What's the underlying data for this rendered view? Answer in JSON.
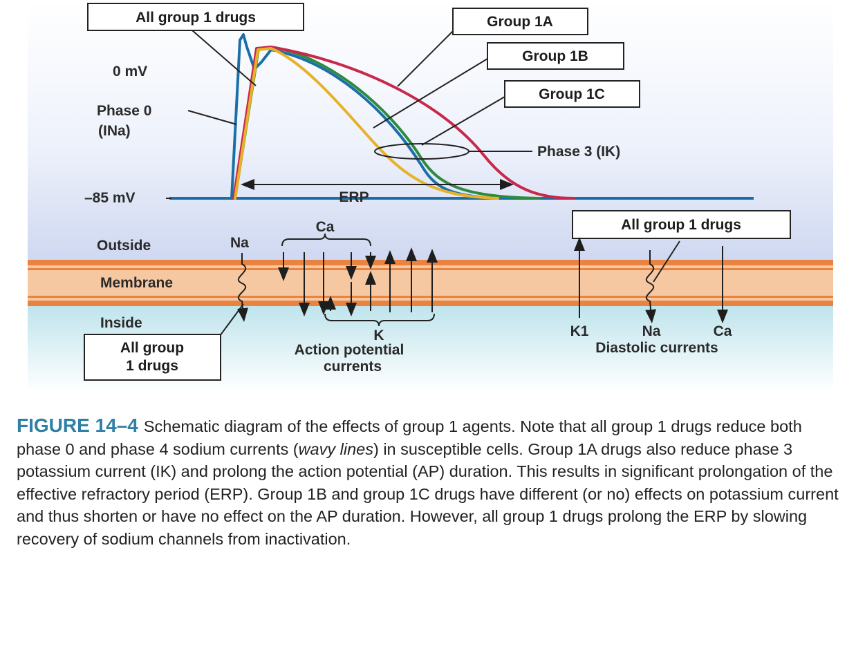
{
  "diagram": {
    "voltage_labels": {
      "zero": "0 mV",
      "rest": "–85 mV"
    },
    "phase0_label": "Phase 0",
    "phase0_current": "(INa)",
    "phase3_label": "Phase 3 (IK)",
    "erp_label": "ERP",
    "callouts": {
      "all_group1_top": "All group 1 drugs",
      "group_1a": "Group 1A",
      "group_1b": "Group 1B",
      "group_1c": "Group 1C",
      "all_group1_bottom_line1": "All group",
      "all_group1_bottom_line2": "1 drugs",
      "all_group1_right": "All group 1 drugs"
    },
    "membrane": {
      "outside": "Outside",
      "membrane": "Membrane",
      "inside": "Inside"
    },
    "ion_labels": {
      "na_left": "Na",
      "ca_top": "Ca",
      "k_bottom": "K",
      "k1": "K1",
      "na_right": "Na",
      "ca_right": "Ca"
    },
    "current_groups": {
      "action_line1": "Action potential",
      "action_line2": "currents",
      "diastolic": "Diastolic currents"
    },
    "colors": {
      "control_blue": "#1b6fa8",
      "group_1a_red": "#c8284a",
      "group_1b_yellow": "#e8b12a",
      "group_1c_green": "#2e8b3e",
      "membrane_orange": "#e9833f",
      "membrane_fill": "#f6c8a2"
    }
  },
  "caption": {
    "figure_label": "FIGURE 14–4",
    "seg1": "Schematic diagram of the effects of group 1 agents. Note that all group 1 drugs reduce both phase 0 and phase 4 sodium currents (",
    "seg2_italic": "wavy lines",
    "seg3": ") in susceptible cells. Group 1A drugs also reduce phase 3 potassium current (IK) and prolong the action potential (AP) duration. This results in significant prolongation of the effective refractory period (ERP). Group 1B and group 1C drugs have different (or no) effects on potassium current and thus shorten or have no effect on the AP duration. However, all group 1 drugs prolong the ERP by slowing recovery of sodium channels from inactivation."
  }
}
